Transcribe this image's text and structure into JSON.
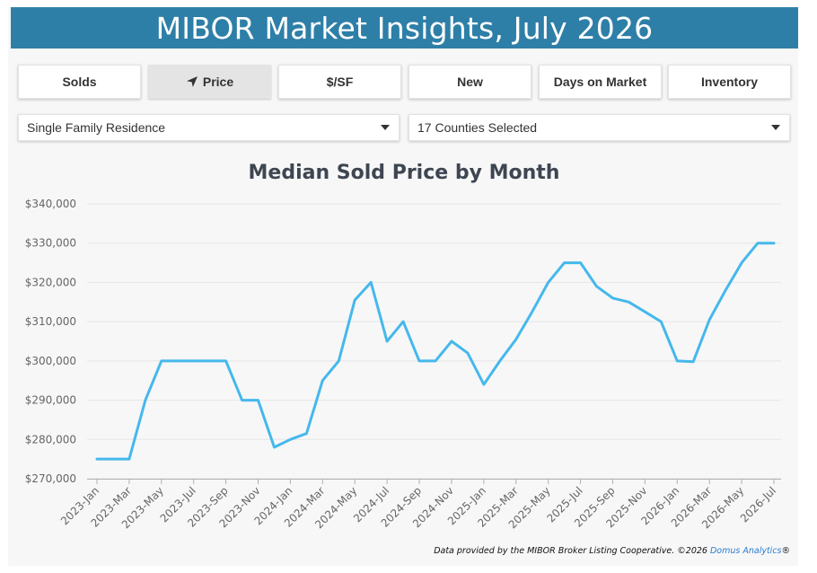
{
  "header": {
    "title": "MIBOR Market Insights, July 2026"
  },
  "tabs": [
    {
      "label": "Solds",
      "active": false
    },
    {
      "label": "Price",
      "active": true,
      "icon": "location-arrow-icon"
    },
    {
      "label": "$/SF",
      "active": false
    },
    {
      "label": "New",
      "active": false
    },
    {
      "label": "Days on Market",
      "active": false
    },
    {
      "label": "Inventory",
      "active": false
    }
  ],
  "filters": {
    "property_type": "Single Family Residence",
    "counties": "17 Counties Selected"
  },
  "chart_data": {
    "type": "line",
    "title": "Median Sold Price by Month",
    "xlabel": "",
    "ylabel": "",
    "ylim": [
      270000,
      340000
    ],
    "yticks": [
      "$270,000",
      "$280,000",
      "$290,000",
      "$300,000",
      "$310,000",
      "$320,000",
      "$330,000",
      "$340,000"
    ],
    "x": [
      "2023-Jan",
      "2023-Feb",
      "2023-Mar",
      "2023-Apr",
      "2023-May",
      "2023-Jun",
      "2023-Jul",
      "2023-Aug",
      "2023-Sep",
      "2023-Oct",
      "2023-Nov",
      "2023-Dec",
      "2024-Jan",
      "2024-Feb",
      "2024-Mar",
      "2024-Apr",
      "2024-May",
      "2024-Jun",
      "2024-Jul",
      "2024-Aug",
      "2024-Sep",
      "2024-Oct",
      "2024-Nov",
      "2024-Dec",
      "2025-Jan",
      "2025-Feb",
      "2025-Mar",
      "2025-Apr",
      "2025-May",
      "2025-Jun",
      "2025-Jul",
      "2025-Aug",
      "2025-Sep",
      "2025-Oct",
      "2025-Nov",
      "2025-Dec",
      "2026-Jan",
      "2026-Feb",
      "2026-Mar",
      "2026-Apr",
      "2026-May",
      "2026-Jun",
      "2026-Jul"
    ],
    "xtick_labels": [
      "2023-Jan",
      "2023-Mar",
      "2023-May",
      "2023-Jul",
      "2023-Sep",
      "2023-Nov",
      "2024-Jan",
      "2024-Mar",
      "2024-May",
      "2024-Jul",
      "2024-Sep",
      "2024-Nov",
      "2025-Jan",
      "2025-Mar",
      "2025-May",
      "2025-Jul",
      "2025-Sep",
      "2025-Nov",
      "2026-Jan",
      "2026-Mar",
      "2026-May",
      "2026-Jul"
    ],
    "series": [
      {
        "color": "#45b8ec",
        "values": [
          275000,
          275000,
          275000,
          290000,
          300000,
          300000,
          300000,
          300000,
          300000,
          290000,
          290000,
          278000,
          280000,
          281500,
          295000,
          300000,
          315500,
          320000,
          305000,
          310000,
          300000,
          300000,
          305000,
          302000,
          294000,
          300000,
          305500,
          312500,
          320000,
          325000,
          325000,
          319000,
          316000,
          315000,
          312500,
          310000,
          300000,
          299800,
          310500,
          318000,
          325000,
          330000,
          330000
        ]
      }
    ],
    "grid": true,
    "legend": "none"
  },
  "footer": {
    "text": "Data provided by the MIBOR Broker Listing Cooperative.  ©2026 ",
    "link": "Domus Analytics",
    "suffix": "®"
  }
}
